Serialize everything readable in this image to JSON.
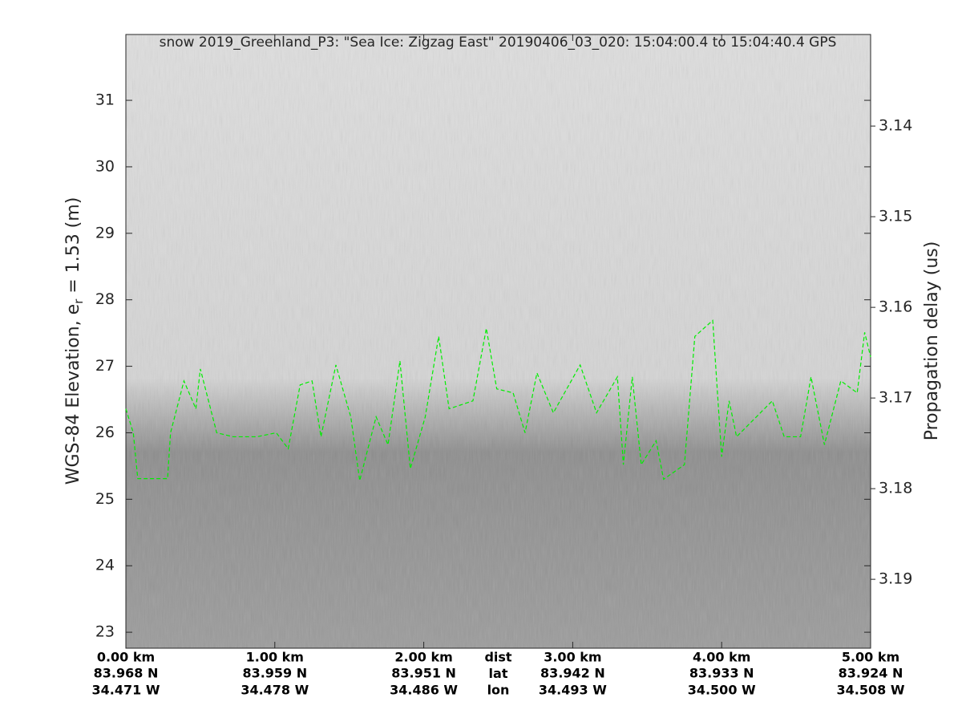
{
  "chart_data": {
    "type": "line",
    "title": "snow 2019_Greenland_P3: \"Sea Ice: Zigzag East\"  20190406_03_020: 15:04:00.4 to 15:04:40.4 GPS",
    "ylabel": {
      "main": "WGS-84 Elevation, e",
      "sub": "r",
      "rest": " = 1.53 (m)"
    },
    "y2label": "Propagation delay (us)",
    "xlim": [
      0,
      5
    ],
    "xticks": [
      {
        "value": 0,
        "label": "0.00 km"
      },
      {
        "value": 1,
        "label": "1.00 km"
      },
      {
        "value": 2,
        "label": "2.00 km"
      },
      {
        "value": 3,
        "label": "3.00 km"
      },
      {
        "value": 4,
        "label": "4.00 km"
      },
      {
        "value": 5,
        "label": "5.00 km"
      }
    ],
    "xtick_lat": [
      "83.968 N",
      "83.959 N",
      "83.951 N",
      "83.942 N",
      "83.933 N",
      "83.924 N"
    ],
    "xtick_lon": [
      "34.471 W",
      "34.478 W",
      "34.486 W",
      "34.493 W",
      "34.500 W",
      "34.508 W"
    ],
    "xtick_row_names": [
      "dist",
      "lat",
      "lon"
    ],
    "ylim": [
      22.76,
      31.99
    ],
    "yticks": [
      23,
      24,
      25,
      26,
      27,
      28,
      29,
      30,
      31
    ],
    "y2lim": [
      3.1976,
      3.1299
    ],
    "y2ticks": [
      3.14,
      3.15,
      3.16,
      3.17,
      3.18,
      3.19
    ],
    "x": [
      0,
      0.05,
      0.08,
      0.28,
      0.3,
      0.39,
      0.47,
      0.5,
      0.61,
      0.72,
      0.88,
      1.01,
      1.09,
      1.17,
      1.25,
      1.31,
      1.41,
      1.51,
      1.57,
      1.68,
      1.76,
      1.84,
      1.91,
      2.01,
      2.1,
      2.17,
      2.33,
      2.42,
      2.49,
      2.6,
      2.68,
      2.76,
      2.87,
      3.05,
      3.16,
      3.3,
      3.34,
      3.4,
      3.46,
      3.56,
      3.61,
      3.75,
      3.82,
      3.94,
      4.0,
      4.05,
      4.1,
      4.26,
      4.34,
      4.42,
      4.53,
      4.6,
      4.69,
      4.8,
      4.91,
      4.96,
      5.0
    ],
    "series": [
      {
        "color": "#00ee00",
        "values": [
          26.36,
          26.0,
          25.31,
          25.31,
          26.0,
          26.78,
          26.36,
          26.96,
          26.0,
          25.94,
          25.94,
          26.0,
          25.76,
          26.72,
          26.78,
          25.94,
          27.02,
          26.24,
          25.28,
          26.24,
          25.82,
          27.08,
          25.46,
          26.24,
          27.45,
          26.36,
          26.48,
          27.57,
          26.66,
          26.6,
          26.0,
          26.9,
          26.3,
          27.02,
          26.3,
          26.84,
          25.52,
          26.84,
          25.52,
          25.88,
          25.3,
          25.52,
          27.45,
          27.69,
          25.64,
          26.48,
          25.94,
          26.3,
          26.48,
          25.94,
          25.94,
          26.84,
          25.82,
          26.78,
          26.6,
          27.51,
          27.14
        ]
      }
    ]
  }
}
